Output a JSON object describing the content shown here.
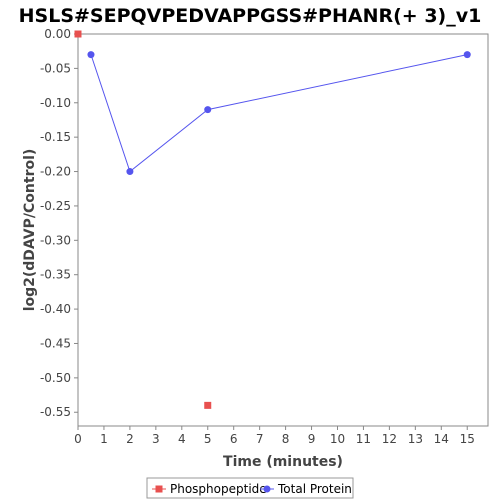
{
  "chart_data": {
    "type": "line",
    "title": "HSLS#SEPQVPEDVAPPGSS#PHANR(+ 3)_v1",
    "xlabel": "Time (minutes)",
    "ylabel": "log2(dDAVP/Control)",
    "xlim": [
      0,
      15.8
    ],
    "ylim": [
      -0.57,
      0.0
    ],
    "xticks": [
      0,
      1,
      2,
      3,
      4,
      5,
      6,
      7,
      8,
      9,
      10,
      11,
      12,
      13,
      14,
      15
    ],
    "xtick_labels": [
      "0",
      "1",
      "2",
      "3",
      "4",
      "5",
      "6",
      "7",
      "8",
      "9",
      "10",
      "11",
      "12",
      "13",
      "14",
      "15"
    ],
    "yticks": [
      0.0,
      -0.05,
      -0.1,
      -0.15,
      -0.2,
      -0.25,
      -0.3,
      -0.35,
      -0.4,
      -0.45,
      -0.5,
      -0.55
    ],
    "ytick_labels": [
      "0.00",
      "-0.05",
      "-0.10",
      "-0.15",
      "-0.20",
      "-0.25",
      "-0.30",
      "-0.35",
      "-0.40",
      "-0.45",
      "-0.50",
      "-0.55"
    ],
    "grid": false,
    "legend_position": "bottom-center",
    "series": [
      {
        "name": "Phosphopeptide",
        "color": "#e8504f",
        "marker": "square",
        "line": false,
        "x": [
          0,
          5
        ],
        "y": [
          0.0,
          -0.54
        ]
      },
      {
        "name": "Total Protein",
        "color": "#5555ee",
        "marker": "circle",
        "line": true,
        "x": [
          0.5,
          2,
          5,
          15
        ],
        "y": [
          -0.03,
          -0.2,
          -0.11,
          -0.03
        ]
      }
    ]
  }
}
